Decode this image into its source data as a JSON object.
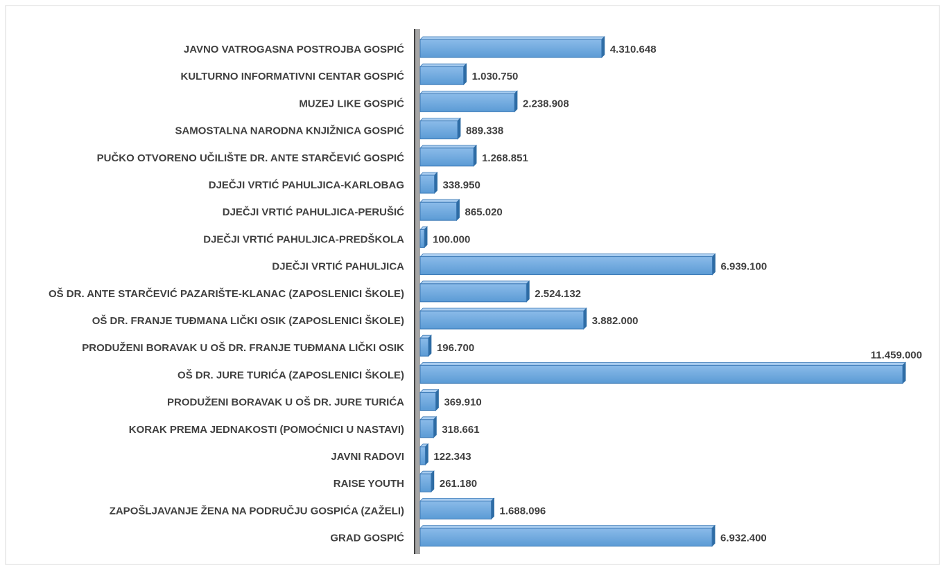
{
  "chart_data": {
    "type": "bar",
    "orientation": "horizontal",
    "color": "#5b9bd5",
    "categories": [
      "JAVNO VATROGASNA POSTROJBA GOSPIĆ",
      "KULTURNO INFORMATIVNI CENTAR GOSPIĆ",
      "MUZEJ LIKE GOSPIĆ ",
      "SAMOSTALNA NARODNA KNJIŽNICA GOSPIĆ",
      "PUČKO OTVORENO UČILIŠTE DR. ANTE STARČEVIĆ GOSPIĆ",
      "DJEČJI VRTIĆ PAHULJICA-KARLOBAG",
      "DJEČJI VRTIĆ PAHULJICA-PERUŠIĆ",
      "DJEČJI VRTIĆ PAHULJICA-PREDŠKOLA",
      "DJEČJI VRTIĆ PAHULJICA",
      "OŠ DR. ANTE STARČEVIĆ PAZARIŠTE-KLANAC (ZAPOSLENICI ŠKOLE)",
      "OŠ DR. FRANJE TUĐMANA LIČKI OSIK (ZAPOSLENICI ŠKOLE)",
      "PRODUŽENI BORAVAK U OŠ DR. FRANJE TUĐMANA LIČKI OSIK",
      "OŠ DR. JURE TURIĆA (ZAPOSLENICI ŠKOLE)",
      "PRODUŽENI BORAVAK U OŠ DR. JURE TURIĆA",
      "KORAK PREMA JEDNAKOSTI (POMOĆNICI U NASTAVI)",
      "JAVNI RADOVI",
      "RAISE YOUTH",
      "ZAPOŠLJAVANJE ŽENA NA PODRUČJU GOSPIĆA (ZAŽELI)",
      "GRAD GOSPIĆ"
    ],
    "values": [
      4310648,
      1030750,
      2238908,
      889338,
      1268851,
      338950,
      865020,
      100000,
      6939100,
      2524132,
      3882000,
      196700,
      11459000,
      369910,
      318661,
      122343,
      261180,
      1688096,
      6932400
    ],
    "value_labels": [
      "4.310.648",
      "1.030.750",
      "2.238.908",
      "889.338",
      "1.268.851",
      "338.950",
      "865.020",
      "100.000",
      "6.939.100",
      "2.524.132",
      "3.882.000",
      "196.700",
      "11.459.000",
      "369.910",
      "318.661",
      "122.343",
      "261.180",
      "1.688.096",
      "6.932.400"
    ]
  }
}
